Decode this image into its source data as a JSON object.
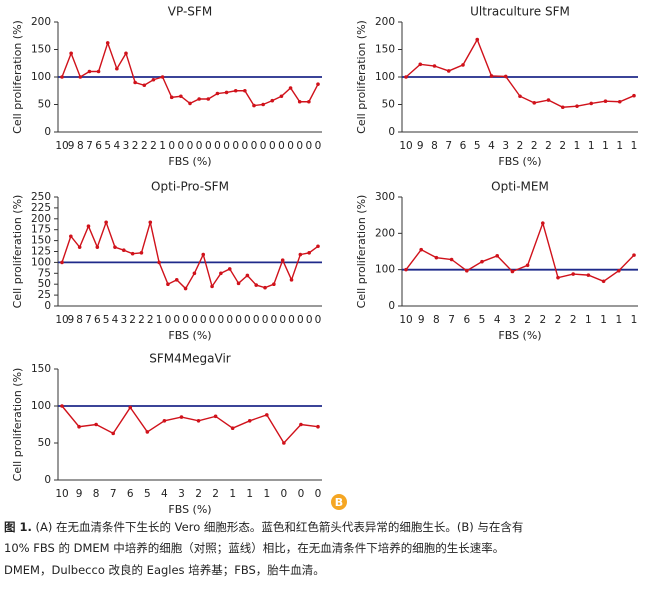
{
  "chart_data": [
    {
      "type": "line",
      "title": "VP-SFM",
      "x_label": "FBS (%)",
      "y_label": "Cell proliferation (%)",
      "categories": [
        "10",
        "9",
        "8",
        "7",
        "6",
        "5",
        "4",
        "3",
        "2",
        "2",
        "2",
        "1",
        "0",
        "0",
        "0",
        "0",
        "0",
        "0",
        "0",
        "0",
        "0",
        "0",
        "0",
        "0",
        "0",
        "0",
        "0",
        "0",
        "0"
      ],
      "series": [
        {
          "color": "#d0121b",
          "values": [
            100,
            143,
            100,
            110,
            110,
            162,
            115,
            143,
            90,
            85,
            95,
            100,
            63,
            65,
            52,
            60,
            60,
            70,
            72,
            75,
            75,
            48,
            50,
            57,
            65,
            80,
            55,
            55,
            87
          ]
        }
      ],
      "reference_line": {
        "value": 100,
        "color": "#1f2a8a"
      },
      "ylim": [
        0,
        200
      ],
      "yticks": [
        0,
        50,
        100,
        150,
        200
      ]
    },
    {
      "type": "line",
      "title": "Ultraculture SFM",
      "x_label": "FBS (%)",
      "y_label": "Cell proliferation (%)",
      "categories": [
        "10",
        "9",
        "8",
        "7",
        "6",
        "5",
        "4",
        "3",
        "2",
        "2",
        "2",
        "2",
        "1",
        "1",
        "1",
        "1",
        "1"
      ],
      "series": [
        {
          "color": "#d0121b",
          "values": [
            100,
            123,
            120,
            111,
            122,
            168,
            102,
            101,
            65,
            53,
            58,
            45,
            47,
            52,
            56,
            55,
            66
          ]
        }
      ],
      "reference_line": {
        "value": 100,
        "color": "#1f2a8a"
      },
      "ylim": [
        0,
        200
      ],
      "yticks": [
        0,
        50,
        100,
        150,
        200
      ]
    },
    {
      "type": "line",
      "title": "Opti-Pro-SFM",
      "x_label": "FBS (%)",
      "y_label": "Cell proliferation (%)",
      "categories": [
        "10",
        "9",
        "8",
        "7",
        "6",
        "5",
        "4",
        "3",
        "2",
        "2",
        "2",
        "1",
        "0",
        "0",
        "0",
        "0",
        "0",
        "0",
        "0",
        "0",
        "0",
        "0",
        "0",
        "0",
        "0",
        "0",
        "0",
        "0",
        "0",
        "0"
      ],
      "series": [
        {
          "color": "#d0121b",
          "values": [
            100,
            160,
            135,
            183,
            135,
            192,
            135,
            128,
            120,
            122,
            192,
            100,
            50,
            60,
            40,
            75,
            118,
            45,
            75,
            85,
            52,
            70,
            48,
            42,
            50,
            105,
            60,
            118,
            122,
            137
          ]
        }
      ],
      "reference_line": {
        "value": 100,
        "color": "#1f2a8a"
      },
      "ylim": [
        0,
        250
      ],
      "yticks": [
        0,
        25,
        50,
        75,
        100,
        125,
        150,
        175,
        200,
        225,
        250
      ]
    },
    {
      "type": "line",
      "title": "Opti-MEM",
      "x_label": "FBS (%)",
      "y_label": "Cell proliferation (%)",
      "categories": [
        "10",
        "9",
        "8",
        "7",
        "6",
        "5",
        "4",
        "3",
        "2",
        "2",
        "2",
        "2",
        "1",
        "1",
        "1",
        "1"
      ],
      "series": [
        {
          "color": "#d0121b",
          "values": [
            100,
            155,
            133,
            128,
            97,
            122,
            138,
            95,
            112,
            228,
            78,
            88,
            85,
            68,
            97,
            140
          ]
        }
      ],
      "reference_line": {
        "value": 100,
        "color": "#1f2a8a"
      },
      "ylim": [
        0,
        300
      ],
      "yticks": [
        0,
        100,
        200,
        300
      ]
    },
    {
      "type": "line",
      "title": "SFM4MegaVir",
      "x_label": "FBS (%)",
      "y_label": "Cell proliferation (%)",
      "categories": [
        "10",
        "9",
        "8",
        "7",
        "6",
        "5",
        "4",
        "3",
        "2",
        "2",
        "1",
        "1",
        "1",
        "0",
        "0",
        "0"
      ],
      "series": [
        {
          "color": "#d0121b",
          "values": [
            100,
            72,
            75,
            63,
            98,
            65,
            80,
            85,
            80,
            86,
            70,
            80,
            88,
            50,
            75,
            72
          ]
        }
      ],
      "reference_line": {
        "value": 100,
        "color": "#1f2a8a"
      },
      "ylim": [
        0,
        150
      ],
      "yticks": [
        0,
        50,
        100,
        150
      ]
    }
  ],
  "badge": "B",
  "caption": {
    "label": "图 1.",
    "lines": [
      "(A) 在无血清条件下生长的 Vero 细胞形态。蓝色和红色箭头代表异常的细胞生长。(B) 与在含有",
      "10% FBS 的 DMEM 中培养的细胞（对照；蓝线）相比，在无血清条件下培养的细胞的生长速率。",
      "DMEM，Dulbecco 改良的 Eagles 培养基；FBS，胎牛血清。"
    ]
  }
}
